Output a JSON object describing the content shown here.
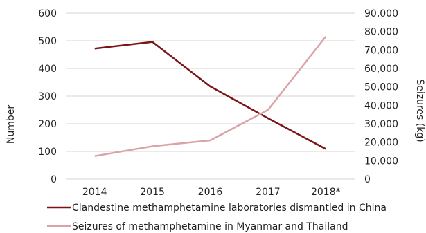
{
  "chart_data": {
    "type": "line",
    "categories": [
      "2014",
      "2015",
      "2016",
      "2017",
      "2018*"
    ],
    "ylabel_left": "Number",
    "ylabel_right": "Seizures (kg)",
    "ylim_left": [
      0,
      600
    ],
    "yticks_left": [
      "0",
      "100",
      "200",
      "300",
      "400",
      "500",
      "600"
    ],
    "ylim_right": [
      0,
      90000
    ],
    "yticks_right": [
      "0",
      "10,000",
      "20,000",
      "30,000",
      "40,000",
      "50,000",
      "60,000",
      "70,000",
      "80,000",
      "90,000"
    ],
    "grid": true,
    "legend_position": "bottom",
    "series": [
      {
        "name": "Clandestine methamphetamine laboratories dismantled in China",
        "axis": "left",
        "color": "#7b1416",
        "values": [
          472,
          496,
          335,
          220,
          109
        ]
      },
      {
        "name": "Seizures of methamphetamine in Myanmar and Thailand",
        "axis": "right",
        "color": "#d9a3a8",
        "values": [
          12500,
          17800,
          21000,
          37500,
          77300
        ]
      }
    ]
  }
}
